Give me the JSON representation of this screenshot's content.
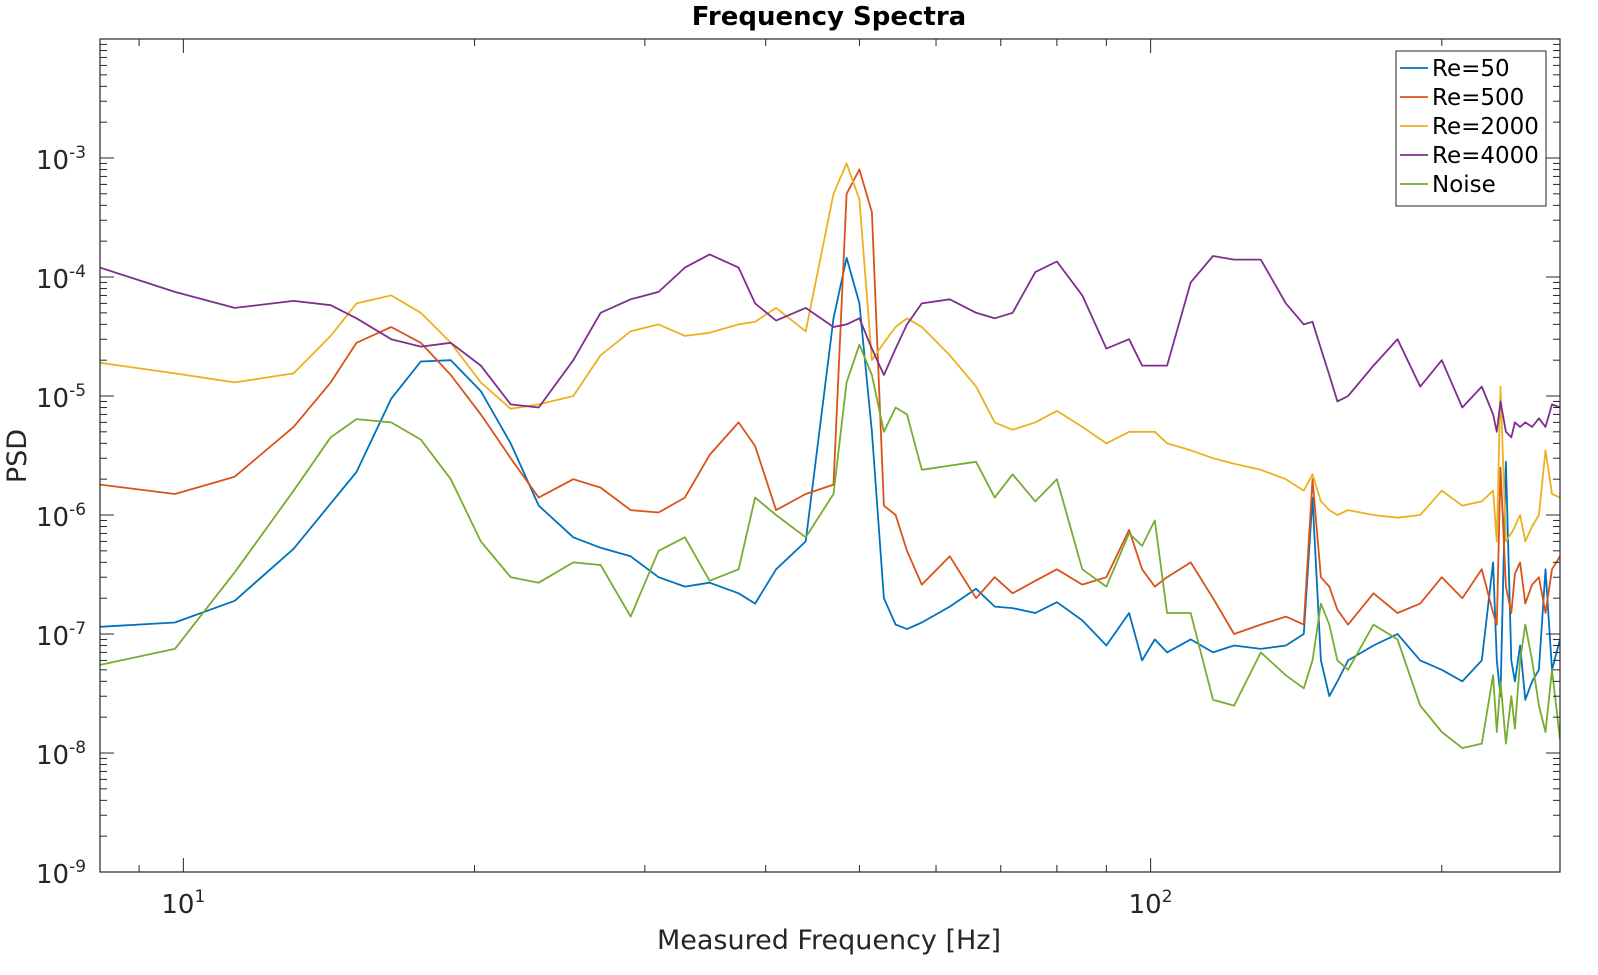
{
  "chart_data": {
    "type": "line",
    "title": "Frequency Spectra",
    "xlabel": "Measured Frequency [Hz]",
    "ylabel": "PSD",
    "xscale": "log",
    "yscale": "log",
    "xlim": [
      8.2,
      265
    ],
    "ylim": [
      1e-09,
      0.01
    ],
    "grid": false,
    "legend_position": "top-right",
    "x_ticks": [
      {
        "value": 10,
        "base": "10",
        "exp": "1"
      },
      {
        "value": 100,
        "base": "10",
        "exp": "2"
      }
    ],
    "y_ticks": [
      {
        "value": 1e-09,
        "base": "10",
        "exp": "-9"
      },
      {
        "value": 1e-08,
        "base": "10",
        "exp": "-8"
      },
      {
        "value": 1e-07,
        "base": "10",
        "exp": "-7"
      },
      {
        "value": 1e-06,
        "base": "10",
        "exp": "-6"
      },
      {
        "value": 1e-05,
        "base": "10",
        "exp": "-5"
      },
      {
        "value": 0.0001,
        "base": "10",
        "exp": "-4"
      },
      {
        "value": 0.001,
        "base": "10",
        "exp": "-3"
      }
    ],
    "series": [
      {
        "name": "Re=50",
        "color": "#0072BD",
        "x": [
          8.2,
          9.8,
          11.3,
          13.0,
          15.1,
          16.4,
          17.6,
          18.9,
          20.3,
          21.8,
          23.3,
          25.3,
          27.0,
          29.0,
          31.0,
          33.0,
          35.0,
          37.5,
          39.0,
          41.0,
          44.0,
          47.0,
          48.5,
          50.0,
          51.5,
          53.0,
          54.5,
          56.0,
          58.0,
          62.0,
          66.0,
          69.0,
          72.0,
          76.0,
          80.0,
          85.0,
          90.0,
          95.0,
          98.0,
          101.0,
          104.0,
          110.0,
          116.0,
          122.0,
          130.0,
          138.0,
          144.0,
          147.0,
          150.0,
          153.0,
          156.0,
          160.0,
          170.0,
          180.0,
          190.0,
          200.0,
          210.0,
          220.0,
          226.0,
          228.0,
          230.0,
          233.0,
          236.0,
          238.0,
          241.0,
          244.0,
          248.0,
          252.0,
          256.0,
          260.0,
          265.0
        ],
        "y": [
          1.15e-07,
          1.25e-07,
          1.9e-07,
          5.2e-07,
          2.3e-06,
          9.5e-06,
          1.95e-05,
          2e-05,
          1.1e-05,
          4e-06,
          1.2e-06,
          6.5e-07,
          5.3e-07,
          4.5e-07,
          3e-07,
          2.5e-07,
          2.7e-07,
          2.2e-07,
          1.8e-07,
          3.5e-07,
          6e-07,
          4.5e-05,
          0.000145,
          6e-05,
          5e-06,
          2e-07,
          1.2e-07,
          1.1e-07,
          1.25e-07,
          1.7e-07,
          2.4e-07,
          1.7e-07,
          1.65e-07,
          1.5e-07,
          1.85e-07,
          1.3e-07,
          8e-08,
          1.5e-07,
          6e-08,
          9e-08,
          7e-08,
          9e-08,
          7e-08,
          8e-08,
          7.5e-08,
          8e-08,
          1e-07,
          1.4e-06,
          6e-08,
          3e-08,
          4e-08,
          6e-08,
          8e-08,
          1e-07,
          6e-08,
          5e-08,
          4e-08,
          6e-08,
          4e-07,
          6e-08,
          3e-08,
          2.8e-06,
          6e-08,
          4e-08,
          8e-08,
          2.8e-08,
          4e-08,
          5e-08,
          3.5e-07,
          5e-08,
          9e-08
        ]
      },
      {
        "name": "Re=500",
        "color": "#D95319",
        "x": [
          8.2,
          9.8,
          11.3,
          13.0,
          14.2,
          15.1,
          16.4,
          17.6,
          18.9,
          20.3,
          21.8,
          23.3,
          25.3,
          27.0,
          29.0,
          31.0,
          33.0,
          35.0,
          37.5,
          39.0,
          41.0,
          44.0,
          47.0,
          48.5,
          50.0,
          51.5,
          53.0,
          54.5,
          56.0,
          58.0,
          62.0,
          66.0,
          69.0,
          72.0,
          76.0,
          80.0,
          85.0,
          90.0,
          95.0,
          98.0,
          101.0,
          104.0,
          110.0,
          116.0,
          122.0,
          130.0,
          138.0,
          144.0,
          147.0,
          150.0,
          153.0,
          156.0,
          160.0,
          170.0,
          180.0,
          190.0,
          200.0,
          210.0,
          220.0,
          226.0,
          228.0,
          230.0,
          233.0,
          236.0,
          238.0,
          241.0,
          244.0,
          248.0,
          252.0,
          256.0,
          260.0,
          265.0
        ],
        "y": [
          1.8e-06,
          1.5e-06,
          2.1e-06,
          5.5e-06,
          1.3e-05,
          2.8e-05,
          3.8e-05,
          2.8e-05,
          1.5e-05,
          7e-06,
          3e-06,
          1.4e-06,
          2e-06,
          1.7e-06,
          1.1e-06,
          1.05e-06,
          1.4e-06,
          3.2e-06,
          6e-06,
          3.8e-06,
          1.1e-06,
          1.5e-06,
          1.8e-06,
          0.0005,
          0.0008,
          0.00035,
          1.2e-06,
          1e-06,
          5e-07,
          2.6e-07,
          4.5e-07,
          2e-07,
          3e-07,
          2.2e-07,
          2.8e-07,
          3.5e-07,
          2.6e-07,
          3e-07,
          7.5e-07,
          3.5e-07,
          2.5e-07,
          3e-07,
          4e-07,
          2e-07,
          1e-07,
          1.2e-07,
          1.4e-07,
          1.2e-07,
          2e-06,
          3e-07,
          2.5e-07,
          1.6e-07,
          1.2e-07,
          2.2e-07,
          1.5e-07,
          1.8e-07,
          3e-07,
          2e-07,
          3.5e-07,
          1.5e-07,
          1.2e-07,
          2.5e-06,
          2.5e-07,
          1.5e-07,
          3.2e-07,
          4e-07,
          1.8e-07,
          2.6e-07,
          3e-07,
          1.5e-07,
          3.5e-07,
          4.5e-07
        ]
      },
      {
        "name": "Re=2000",
        "color": "#EDB120",
        "x": [
          8.2,
          9.8,
          11.3,
          13.0,
          14.2,
          15.1,
          16.4,
          17.6,
          18.9,
          20.3,
          21.8,
          23.3,
          25.3,
          27.0,
          29.0,
          31.0,
          33.0,
          35.0,
          37.5,
          39.0,
          41.0,
          44.0,
          47.0,
          48.5,
          50.0,
          51.5,
          53.0,
          54.5,
          56.0,
          58.0,
          62.0,
          66.0,
          69.0,
          72.0,
          76.0,
          80.0,
          85.0,
          90.0,
          95.0,
          98.0,
          101.0,
          104.0,
          110.0,
          116.0,
          122.0,
          130.0,
          138.0,
          144.0,
          147.0,
          150.0,
          153.0,
          156.0,
          160.0,
          170.0,
          180.0,
          190.0,
          200.0,
          210.0,
          220.0,
          226.0,
          228.0,
          230.0,
          233.0,
          236.0,
          238.0,
          241.0,
          244.0,
          248.0,
          252.0,
          256.0,
          260.0,
          265.0
        ],
        "y": [
          1.9e-05,
          1.55e-05,
          1.3e-05,
          1.55e-05,
          3.2e-05,
          6e-05,
          7e-05,
          5e-05,
          2.8e-05,
          1.3e-05,
          7.8e-06,
          8.5e-06,
          1e-05,
          2.2e-05,
          3.5e-05,
          4e-05,
          3.2e-05,
          3.4e-05,
          4e-05,
          4.2e-05,
          5.5e-05,
          3.5e-05,
          0.0005,
          0.0009,
          0.00045,
          2e-05,
          2.8e-05,
          3.8e-05,
          4.5e-05,
          3.8e-05,
          2.2e-05,
          1.2e-05,
          6e-06,
          5.2e-06,
          6e-06,
          7.5e-06,
          5.5e-06,
          4e-06,
          5e-06,
          5e-06,
          5e-06,
          4e-06,
          3.5e-06,
          3e-06,
          2.7e-06,
          2.4e-06,
          2e-06,
          1.6e-06,
          2.2e-06,
          1.3e-06,
          1.1e-06,
          1e-06,
          1.1e-06,
          1e-06,
          9.5e-07,
          1e-06,
          1.6e-06,
          1.2e-06,
          1.3e-06,
          1.6e-06,
          6e-07,
          1.2e-05,
          6e-07,
          7e-07,
          8e-07,
          1e-06,
          6e-07,
          8e-07,
          1e-06,
          3.5e-06,
          1.5e-06,
          1.4e-06
        ]
      },
      {
        "name": "Re=4000",
        "color": "#7E2F8E",
        "x": [
          8.2,
          9.8,
          11.3,
          13.0,
          14.2,
          15.1,
          16.4,
          17.6,
          18.9,
          20.3,
          21.8,
          23.3,
          25.3,
          27.0,
          29.0,
          31.0,
          33.0,
          35.0,
          37.5,
          39.0,
          41.0,
          44.0,
          47.0,
          48.5,
          50.0,
          51.5,
          53.0,
          54.5,
          56.0,
          58.0,
          62.0,
          66.0,
          69.0,
          72.0,
          76.0,
          80.0,
          85.0,
          90.0,
          95.0,
          98.0,
          101.0,
          104.0,
          110.0,
          116.0,
          122.0,
          130.0,
          138.0,
          144.0,
          147.0,
          150.0,
          153.0,
          156.0,
          160.0,
          170.0,
          180.0,
          190.0,
          200.0,
          210.0,
          220.0,
          226.0,
          228.0,
          230.0,
          233.0,
          236.0,
          238.0,
          241.0,
          244.0,
          248.0,
          252.0,
          256.0,
          260.0,
          265.0
        ],
        "y": [
          0.00012,
          7.5e-05,
          5.5e-05,
          6.3e-05,
          5.8e-05,
          4.5e-05,
          3e-05,
          2.6e-05,
          2.8e-05,
          1.8e-05,
          8.5e-06,
          8e-06,
          2e-05,
          5e-05,
          6.5e-05,
          7.5e-05,
          0.00012,
          0.000155,
          0.00012,
          6e-05,
          4.3e-05,
          5.5e-05,
          3.8e-05,
          4e-05,
          4.5e-05,
          2.5e-05,
          1.5e-05,
          2.5e-05,
          4e-05,
          6e-05,
          6.5e-05,
          5e-05,
          4.5e-05,
          5e-05,
          0.00011,
          0.000135,
          7e-05,
          2.5e-05,
          3e-05,
          1.8e-05,
          1.8e-05,
          1.8e-05,
          9e-05,
          0.00015,
          0.00014,
          0.00014,
          6e-05,
          4e-05,
          4.2e-05,
          2.5e-05,
          1.5e-05,
          9e-06,
          1e-05,
          1.8e-05,
          3e-05,
          1.2e-05,
          2e-05,
          8e-06,
          1.2e-05,
          7e-06,
          5e-06,
          9e-06,
          5e-06,
          4.5e-06,
          6e-06,
          5.5e-06,
          6e-06,
          5.5e-06,
          6.5e-06,
          5.5e-06,
          8.5e-06,
          8e-06
        ]
      },
      {
        "name": "Noise",
        "color": "#77AC30",
        "x": [
          8.2,
          9.8,
          11.3,
          13.0,
          14.2,
          15.1,
          16.4,
          17.6,
          18.9,
          20.3,
          21.8,
          23.3,
          25.3,
          27.0,
          29.0,
          31.0,
          33.0,
          35.0,
          37.5,
          39.0,
          41.0,
          44.0,
          47.0,
          48.5,
          50.0,
          51.5,
          53.0,
          54.5,
          56.0,
          58.0,
          62.0,
          66.0,
          69.0,
          72.0,
          76.0,
          80.0,
          85.0,
          90.0,
          95.0,
          98.0,
          101.0,
          104.0,
          110.0,
          116.0,
          122.0,
          130.0,
          138.0,
          144.0,
          147.0,
          150.0,
          153.0,
          156.0,
          160.0,
          170.0,
          180.0,
          190.0,
          200.0,
          210.0,
          220.0,
          226.0,
          228.0,
          230.0,
          233.0,
          236.0,
          238.0,
          241.0,
          244.0,
          248.0,
          252.0,
          256.0,
          260.0,
          265.0
        ],
        "y": [
          5.5e-08,
          7.5e-08,
          3.3e-07,
          1.6e-06,
          4.5e-06,
          6.4e-06,
          6e-06,
          4.3e-06,
          2e-06,
          6e-07,
          3e-07,
          2.7e-07,
          4e-07,
          3.8e-07,
          1.4e-07,
          5e-07,
          6.5e-07,
          2.8e-07,
          3.5e-07,
          1.4e-06,
          1e-06,
          6.5e-07,
          1.5e-06,
          1.3e-05,
          2.7e-05,
          1.5e-05,
          5e-06,
          8e-06,
          7e-06,
          2.4e-06,
          2.6e-06,
          2.8e-06,
          1.4e-06,
          2.2e-06,
          1.3e-06,
          2e-06,
          3.5e-07,
          2.5e-07,
          7e-07,
          5.5e-07,
          9e-07,
          1.5e-07,
          1.5e-07,
          2.8e-08,
          2.5e-08,
          7e-08,
          4.5e-08,
          3.5e-08,
          6e-08,
          1.8e-07,
          1.2e-07,
          6e-08,
          5e-08,
          1.2e-07,
          9e-08,
          2.5e-08,
          1.5e-08,
          1.1e-08,
          1.2e-08,
          4.5e-08,
          1.5e-08,
          4e-08,
          1.2e-08,
          3e-08,
          1.6e-08,
          6e-08,
          1.2e-07,
          6e-08,
          2.5e-08,
          1.5e-08,
          5e-08,
          1.3e-08
        ]
      }
    ]
  }
}
